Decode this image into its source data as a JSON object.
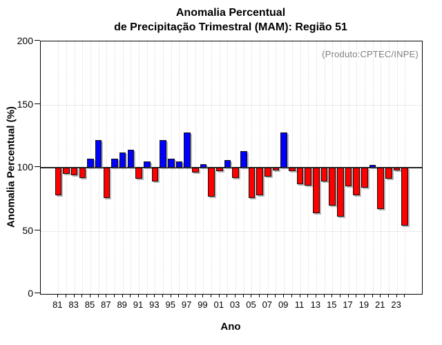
{
  "title": {
    "line1": "Anomalia Percentual",
    "line2": "de Precipitação Trimestral (MAM): Região 51"
  },
  "annotation": "(Produto:CPTEC/INPE)",
  "chart_data": {
    "type": "bar",
    "title": "Anomalia Percentual de Precipitação Trimestral (MAM): Região 51",
    "xlabel": "Ano",
    "ylabel": "Anomalia Percentual (%)",
    "ylim": [
      0,
      200
    ],
    "yticks": [
      0,
      50,
      100,
      150,
      200
    ],
    "baseline": 100,
    "grid": "dotted",
    "legend_position": "none",
    "bar_above_color": "#0000ff",
    "bar_below_color": "#ff0000",
    "xtick_labels": [
      "81",
      "83",
      "85",
      "87",
      "89",
      "91",
      "93",
      "95",
      "97",
      "99",
      "01",
      "03",
      "05",
      "07",
      "09",
      "11",
      "13",
      "15",
      "17",
      "19",
      "21",
      "23"
    ],
    "years": [
      1981,
      1982,
      1983,
      1984,
      1985,
      1986,
      1987,
      1988,
      1989,
      1990,
      1991,
      1992,
      1993,
      1994,
      1995,
      1996,
      1997,
      1998,
      1999,
      2000,
      2001,
      2002,
      2003,
      2004,
      2005,
      2006,
      2007,
      2008,
      2009,
      2010,
      2011,
      2012,
      2013,
      2014,
      2015,
      2016,
      2017,
      2018,
      2019,
      2020,
      2021,
      2022,
      2023,
      2024
    ],
    "values": [
      78,
      95,
      94,
      92,
      107,
      122,
      76,
      107,
      112,
      114,
      91,
      105,
      89,
      122,
      107,
      105,
      128,
      96,
      103,
      77,
      97,
      106,
      92,
      113,
      76,
      78,
      93,
      98,
      128,
      97,
      87,
      86,
      64,
      89,
      70,
      61,
      85,
      78,
      84,
      102,
      67,
      91,
      98,
      54
    ]
  }
}
